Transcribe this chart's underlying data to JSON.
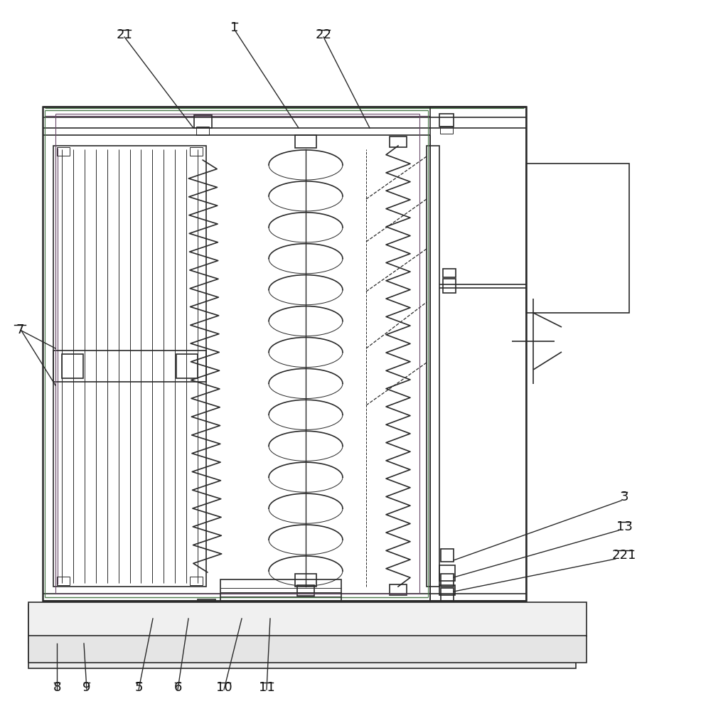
{
  "bg_color": "#ffffff",
  "line_color": "#2a2a2a",
  "lw_thick": 1.8,
  "lw_med": 1.2,
  "lw_thin": 0.7,
  "lw_vt": 0.5,
  "fig_width": 9.87,
  "fig_height": 10.0,
  "green_color": "#4a7a4a",
  "purple_color": "#6a4a6a"
}
